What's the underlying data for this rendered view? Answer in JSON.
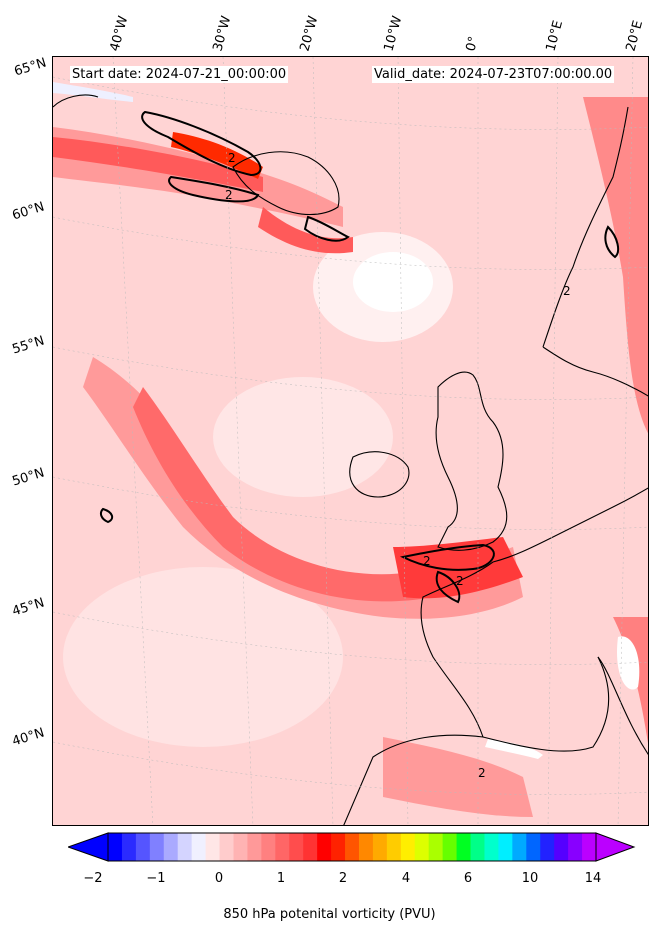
{
  "header": {
    "start_date": "Start date: 2024-07-21_00:00:00",
    "valid_date": "Valid_date: 2024-07-23T07:00:00.00"
  },
  "lon_labels": [
    "40°W",
    "30°W",
    "20°W",
    "10°W",
    "0°",
    "10°E",
    "20°E"
  ],
  "lat_labels": [
    "65°N",
    "60°N",
    "55°N",
    "50°N",
    "45°N",
    "40°N"
  ],
  "colorbar": {
    "label": "850 hPa potenital vorticity (PVU)",
    "ticks": [
      "−2",
      "−1",
      "0",
      "1",
      "2",
      "4",
      "6",
      "10",
      "14"
    ],
    "colors": [
      "#0000ff",
      "#2b2bff",
      "#5555ff",
      "#8080ff",
      "#aaaaff",
      "#d4d4ff",
      "#f0f0ff",
      "#ffe6e6",
      "#ffcccc",
      "#ffb3b3",
      "#ff9999",
      "#ff8080",
      "#ff6666",
      "#ff4d4d",
      "#ff3333",
      "#ff0000",
      "#ff2200",
      "#ff5500",
      "#ff8800",
      "#ffaa00",
      "#ffcc00",
      "#ffee00",
      "#ddff00",
      "#aaff00",
      "#66ff00",
      "#00ff22",
      "#00ff88",
      "#00ffcc",
      "#00eeff",
      "#00aaff",
      "#0066ff",
      "#2222ff",
      "#5500ff",
      "#8800ff",
      "#bb00ff"
    ],
    "extend_min_color": "#0000ff",
    "extend_max_color": "#bb00ff"
  },
  "contour_label": "2",
  "field_colors": {
    "background": "#ffd9d9",
    "light": "#ffe9e9",
    "medium": "#ffb3b3",
    "strong": "#ff8080",
    "intense": "#ff4444",
    "peak": "#ff2200",
    "negative": "#f4f4ff",
    "coast": "#000000"
  }
}
